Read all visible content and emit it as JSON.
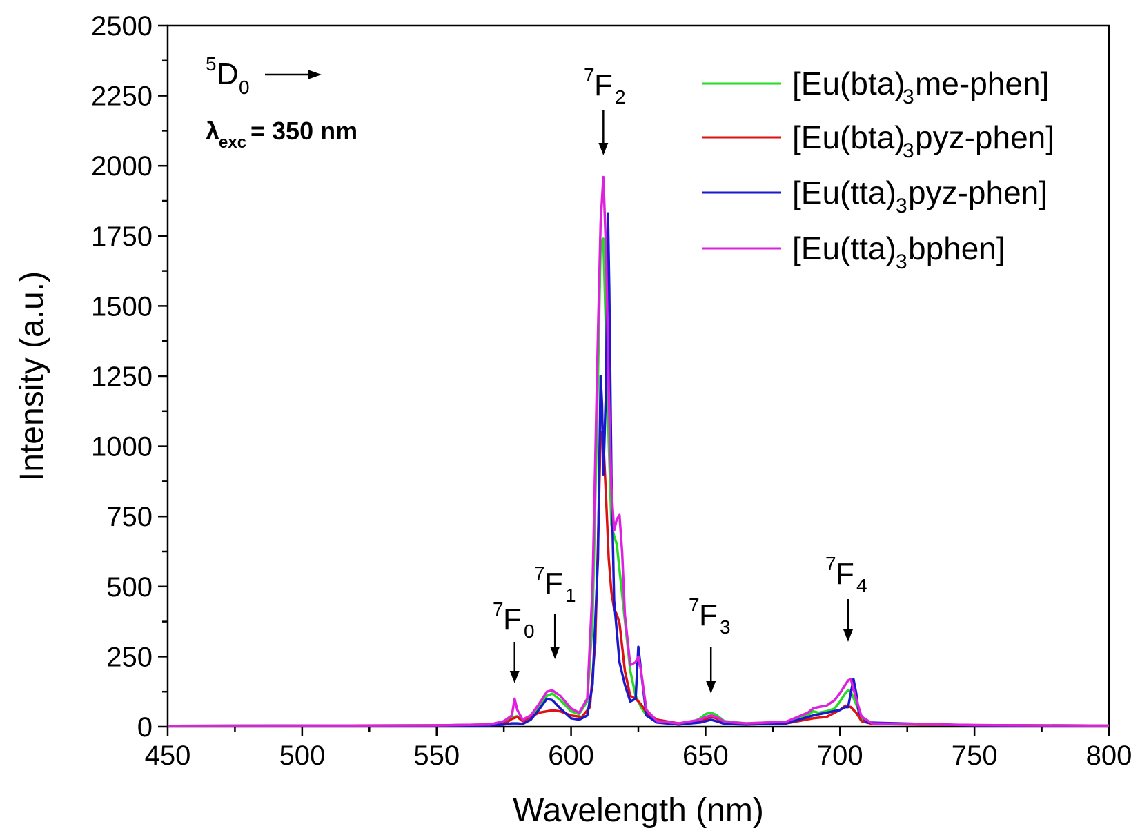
{
  "chart_data": {
    "type": "line",
    "xlabel": "Wavelength (nm)",
    "ylabel": "Intensity (a.u.)",
    "xlim": [
      450,
      800
    ],
    "ylim": [
      0,
      2500
    ],
    "x_ticks": [
      450,
      500,
      550,
      600,
      650,
      700,
      750,
      800
    ],
    "y_ticks": [
      0,
      250,
      500,
      750,
      1000,
      1250,
      1500,
      1750,
      2000,
      2250,
      2500
    ],
    "grid": false,
    "legend_position": "top-right",
    "series": [
      {
        "name_main": "[Eu(bta)",
        "name_sub": "3",
        "name_rest": "me-phen]",
        "color": "#22dd22",
        "points": [
          [
            450,
            3
          ],
          [
            500,
            4
          ],
          [
            550,
            5
          ],
          [
            570,
            8
          ],
          [
            575,
            20
          ],
          [
            578,
            32
          ],
          [
            580,
            38
          ],
          [
            582,
            25
          ],
          [
            585,
            40
          ],
          [
            588,
            70
          ],
          [
            591,
            110
          ],
          [
            593,
            118
          ],
          [
            596,
            95
          ],
          [
            600,
            55
          ],
          [
            603,
            45
          ],
          [
            606,
            90
          ],
          [
            608,
            380
          ],
          [
            610,
            1250
          ],
          [
            611,
            1720
          ],
          [
            612,
            1740
          ],
          [
            613,
            1400
          ],
          [
            614,
            1020
          ],
          [
            615,
            720
          ],
          [
            616,
            680
          ],
          [
            617,
            650
          ],
          [
            618,
            560
          ],
          [
            620,
            380
          ],
          [
            622,
            200
          ],
          [
            624,
            110
          ],
          [
            626,
            70
          ],
          [
            628,
            40
          ],
          [
            632,
            20
          ],
          [
            640,
            12
          ],
          [
            645,
            15
          ],
          [
            648,
            30
          ],
          [
            650,
            45
          ],
          [
            652,
            50
          ],
          [
            654,
            42
          ],
          [
            657,
            20
          ],
          [
            665,
            12
          ],
          [
            680,
            18
          ],
          [
            688,
            40
          ],
          [
            690,
            55
          ],
          [
            692,
            50
          ],
          [
            695,
            55
          ],
          [
            698,
            65
          ],
          [
            700,
            90
          ],
          [
            702,
            120
          ],
          [
            703,
            130
          ],
          [
            704,
            125
          ],
          [
            706,
            80
          ],
          [
            708,
            30
          ],
          [
            712,
            12
          ],
          [
            750,
            6
          ],
          [
            800,
            4
          ]
        ]
      },
      {
        "name_main": "[Eu(bta)",
        "name_sub": "3",
        "name_rest": "pyz-phen]",
        "color": "#dd1111",
        "points": [
          [
            450,
            3
          ],
          [
            500,
            4
          ],
          [
            550,
            5
          ],
          [
            570,
            8
          ],
          [
            576,
            15
          ],
          [
            578,
            28
          ],
          [
            580,
            35
          ],
          [
            582,
            20
          ],
          [
            585,
            35
          ],
          [
            588,
            50
          ],
          [
            591,
            55
          ],
          [
            593,
            58
          ],
          [
            596,
            55
          ],
          [
            600,
            40
          ],
          [
            604,
            35
          ],
          [
            607,
            70
          ],
          [
            609,
            300
          ],
          [
            610,
            650
          ],
          [
            611,
            1050
          ],
          [
            612,
            1020
          ],
          [
            613,
            820
          ],
          [
            614,
            600
          ],
          [
            615,
            480
          ],
          [
            616,
            420
          ],
          [
            617,
            400
          ],
          [
            618,
            370
          ],
          [
            620,
            200
          ],
          [
            622,
            110
          ],
          [
            624,
            100
          ],
          [
            626,
            80
          ],
          [
            628,
            50
          ],
          [
            632,
            25
          ],
          [
            640,
            12
          ],
          [
            648,
            20
          ],
          [
            650,
            28
          ],
          [
            652,
            35
          ],
          [
            654,
            30
          ],
          [
            657,
            15
          ],
          [
            665,
            10
          ],
          [
            680,
            12
          ],
          [
            690,
            30
          ],
          [
            695,
            35
          ],
          [
            700,
            60
          ],
          [
            702,
            75
          ],
          [
            704,
            70
          ],
          [
            706,
            50
          ],
          [
            708,
            20
          ],
          [
            712,
            10
          ],
          [
            750,
            6
          ],
          [
            800,
            4
          ]
        ]
      },
      {
        "name_main": "[Eu(tta)",
        "name_sub": "3",
        "name_rest": "pyz-phen]",
        "color": "#1a1acc",
        "points": [
          [
            450,
            3
          ],
          [
            500,
            4
          ],
          [
            550,
            4
          ],
          [
            570,
            5
          ],
          [
            575,
            8
          ],
          [
            578,
            12
          ],
          [
            580,
            12
          ],
          [
            582,
            10
          ],
          [
            585,
            25
          ],
          [
            588,
            60
          ],
          [
            591,
            100
          ],
          [
            593,
            95
          ],
          [
            596,
            65
          ],
          [
            600,
            30
          ],
          [
            603,
            25
          ],
          [
            606,
            40
          ],
          [
            608,
            150
          ],
          [
            610,
            600
          ],
          [
            611,
            1250
          ],
          [
            611.5,
            1150
          ],
          [
            612,
            900
          ],
          [
            613,
            1200
          ],
          [
            613.7,
            1830
          ],
          [
            614.2,
            1560
          ],
          [
            615,
            900
          ],
          [
            616,
            450
          ],
          [
            618,
            230
          ],
          [
            620,
            150
          ],
          [
            622,
            90
          ],
          [
            624,
            100
          ],
          [
            625,
            285
          ],
          [
            626,
            200
          ],
          [
            628,
            40
          ],
          [
            632,
            15
          ],
          [
            640,
            8
          ],
          [
            648,
            15
          ],
          [
            650,
            20
          ],
          [
            652,
            25
          ],
          [
            654,
            20
          ],
          [
            657,
            10
          ],
          [
            665,
            8
          ],
          [
            680,
            12
          ],
          [
            690,
            40
          ],
          [
            695,
            50
          ],
          [
            700,
            60
          ],
          [
            702,
            70
          ],
          [
            703,
            70
          ],
          [
            704,
            120
          ],
          [
            705,
            170
          ],
          [
            706,
            120
          ],
          [
            707,
            50
          ],
          [
            710,
            15
          ],
          [
            750,
            5
          ],
          [
            800,
            3
          ]
        ]
      },
      {
        "name_main": "[Eu(tta)",
        "name_sub": "3",
        "name_rest": "bphen]",
        "color": "#dd22dd",
        "points": [
          [
            450,
            3
          ],
          [
            500,
            4
          ],
          [
            550,
            5
          ],
          [
            570,
            8
          ],
          [
            575,
            20
          ],
          [
            578,
            40
          ],
          [
            579,
            100
          ],
          [
            580,
            60
          ],
          [
            582,
            25
          ],
          [
            585,
            40
          ],
          [
            588,
            80
          ],
          [
            591,
            125
          ],
          [
            593,
            130
          ],
          [
            596,
            110
          ],
          [
            600,
            65
          ],
          [
            603,
            50
          ],
          [
            606,
            100
          ],
          [
            608,
            500
          ],
          [
            610,
            1400
          ],
          [
            611,
            1800
          ],
          [
            612,
            1960
          ],
          [
            613,
            1700
          ],
          [
            614,
            1200
          ],
          [
            615,
            850
          ],
          [
            616,
            700
          ],
          [
            617,
            740
          ],
          [
            618,
            755
          ],
          [
            619,
            620
          ],
          [
            620,
            400
          ],
          [
            622,
            220
          ],
          [
            624,
            230
          ],
          [
            625,
            250
          ],
          [
            626,
            200
          ],
          [
            628,
            60
          ],
          [
            632,
            20
          ],
          [
            640,
            12
          ],
          [
            648,
            25
          ],
          [
            650,
            35
          ],
          [
            652,
            40
          ],
          [
            654,
            35
          ],
          [
            657,
            18
          ],
          [
            665,
            12
          ],
          [
            680,
            18
          ],
          [
            688,
            50
          ],
          [
            690,
            65
          ],
          [
            692,
            70
          ],
          [
            695,
            75
          ],
          [
            698,
            95
          ],
          [
            700,
            120
          ],
          [
            702,
            150
          ],
          [
            703,
            165
          ],
          [
            704,
            170
          ],
          [
            706,
            100
          ],
          [
            708,
            35
          ],
          [
            712,
            12
          ],
          [
            750,
            6
          ],
          [
            800,
            4
          ]
        ]
      }
    ],
    "annotations": {
      "transition_from": {
        "main": "D",
        "pre_sup": "5",
        "sub": "0"
      },
      "excitation": {
        "symbol": "λ",
        "sub": "exc",
        "value": "= 350 nm"
      },
      "peaks": [
        {
          "id": "f0",
          "main": "F",
          "pre_sup": "7",
          "sub": "0",
          "x": 579
        },
        {
          "id": "f1",
          "main": "F",
          "pre_sup": "7",
          "sub": "1",
          "x": 594
        },
        {
          "id": "f2",
          "main": "F",
          "pre_sup": "7",
          "sub": "2",
          "x": 612
        },
        {
          "id": "f3",
          "main": "F",
          "pre_sup": "7",
          "sub": "3",
          "x": 652
        },
        {
          "id": "f4",
          "main": "F",
          "pre_sup": "7",
          "sub": "4",
          "x": 703
        }
      ]
    }
  }
}
